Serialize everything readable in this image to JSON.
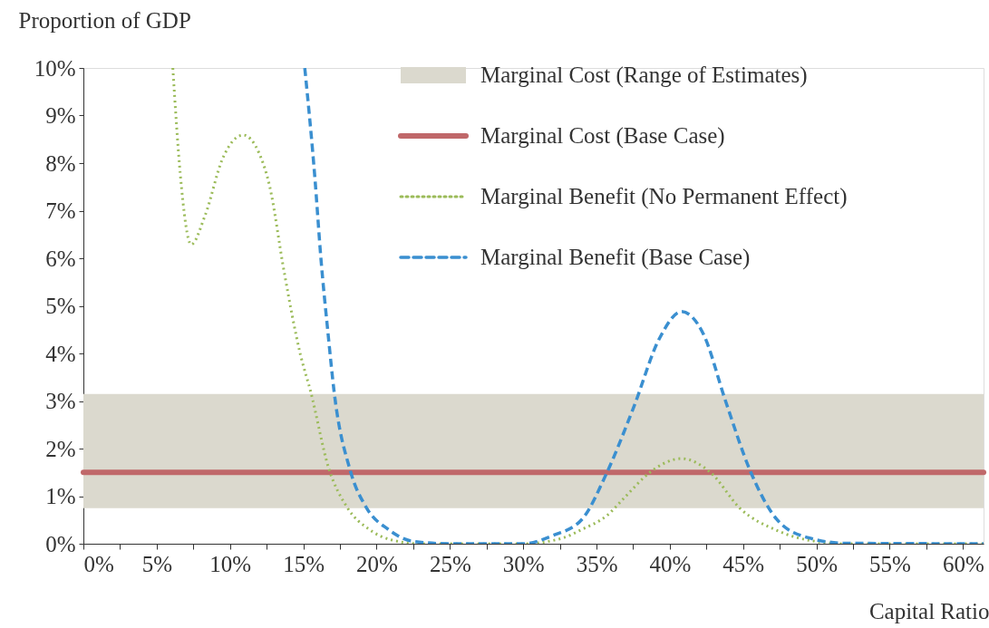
{
  "chart_data": {
    "type": "line",
    "ylabel": "Proportion of GDP",
    "xlabel": "Capital Ratio",
    "xlim": [
      0,
      61.4
    ],
    "ylim": [
      0,
      10
    ],
    "xticks": [
      {
        "value": 0,
        "label": "0%"
      },
      {
        "value": 2.5,
        "label": null
      },
      {
        "value": 5,
        "label": "5%"
      },
      {
        "value": 7.5,
        "label": null
      },
      {
        "value": 10,
        "label": "10%"
      },
      {
        "value": 12.5,
        "label": null
      },
      {
        "value": 15,
        "label": "15%"
      },
      {
        "value": 17.5,
        "label": null
      },
      {
        "value": 20,
        "label": "20%"
      },
      {
        "value": 22.5,
        "label": null
      },
      {
        "value": 25,
        "label": "25%"
      },
      {
        "value": 27.5,
        "label": null
      },
      {
        "value": 30,
        "label": "30%"
      },
      {
        "value": 32.5,
        "label": null
      },
      {
        "value": 35,
        "label": "35%"
      },
      {
        "value": 37.5,
        "label": null
      },
      {
        "value": 40,
        "label": "40%"
      },
      {
        "value": 42.5,
        "label": null
      },
      {
        "value": 45,
        "label": "45%"
      },
      {
        "value": 47.5,
        "label": null
      },
      {
        "value": 50,
        "label": "50%"
      },
      {
        "value": 52.5,
        "label": null
      },
      {
        "value": 55,
        "label": "55%"
      },
      {
        "value": 57.5,
        "label": null
      },
      {
        "value": 60,
        "label": "60%"
      }
    ],
    "yticks": [
      {
        "value": 0,
        "label": "0%"
      },
      {
        "value": 1,
        "label": "1%"
      },
      {
        "value": 2,
        "label": "2%"
      },
      {
        "value": 3,
        "label": "3%"
      },
      {
        "value": 4,
        "label": "4%"
      },
      {
        "value": 5,
        "label": "5%"
      },
      {
        "value": 6,
        "label": "6%"
      },
      {
        "value": 7,
        "label": "7%"
      },
      {
        "value": 8,
        "label": "8%"
      },
      {
        "value": 9,
        "label": "9%"
      },
      {
        "value": 10,
        "label": "10%"
      }
    ],
    "bands": [
      {
        "axis": "y",
        "from": 0.75,
        "to": 3.15,
        "label": "Marginal Cost (Range of Estimates)",
        "color": "#dbd9ce"
      }
    ],
    "ref_lines": [
      {
        "axis": "y",
        "value": 1.5,
        "label": "Marginal Cost (Base Case)",
        "color": "#c0686a",
        "line_style": "solid"
      }
    ],
    "series": [
      {
        "name": "Marginal Benefit (No Permanent Effect)",
        "color": "#9bbb59",
        "line_style": "dotted",
        "x": [
          6.1,
          6.6,
          7.35,
          8.3,
          9.5,
          10.9,
          12.0,
          12.7,
          13.7,
          14.8,
          15.5,
          16.7,
          18.0,
          19.5,
          21.0,
          23.0,
          30.0,
          32.7,
          34.0,
          35.7,
          37.0,
          38.6,
          40.8,
          42.8,
          44.8,
          47.3,
          49.9,
          52.0,
          61.4
        ],
        "values": [
          10,
          7.8,
          6.29,
          6.9,
          8.1,
          8.59,
          8.2,
          7.52,
          5.7,
          3.98,
          3.2,
          1.62,
          0.76,
          0.3,
          0.08,
          0,
          0,
          0.12,
          0.3,
          0.59,
          1.0,
          1.49,
          1.79,
          1.49,
          0.74,
          0.28,
          0.05,
          0,
          0
        ]
      },
      {
        "name": "Marginal Benefit (Base Case)",
        "color": "#3a8fd0",
        "line_style": "dashed",
        "x": [
          15.1,
          15.8,
          16.2,
          16.7,
          17.1,
          18.2,
          19.3,
          20.8,
          22.5,
          25.0,
          30.0,
          32.0,
          34.0,
          35.7,
          37.5,
          39.3,
          40.8,
          42.3,
          43.8,
          45.5,
          47.3,
          49.4,
          52.0,
          61.4
        ],
        "values": [
          10,
          7.65,
          6.0,
          4.38,
          3.2,
          1.54,
          0.76,
          0.3,
          0.05,
          0,
          0,
          0.17,
          0.51,
          1.49,
          2.84,
          4.32,
          4.88,
          4.4,
          3.0,
          1.52,
          0.51,
          0.13,
          0.01,
          0
        ]
      }
    ],
    "legend": "top right",
    "grid": false,
    "marker": "none"
  }
}
